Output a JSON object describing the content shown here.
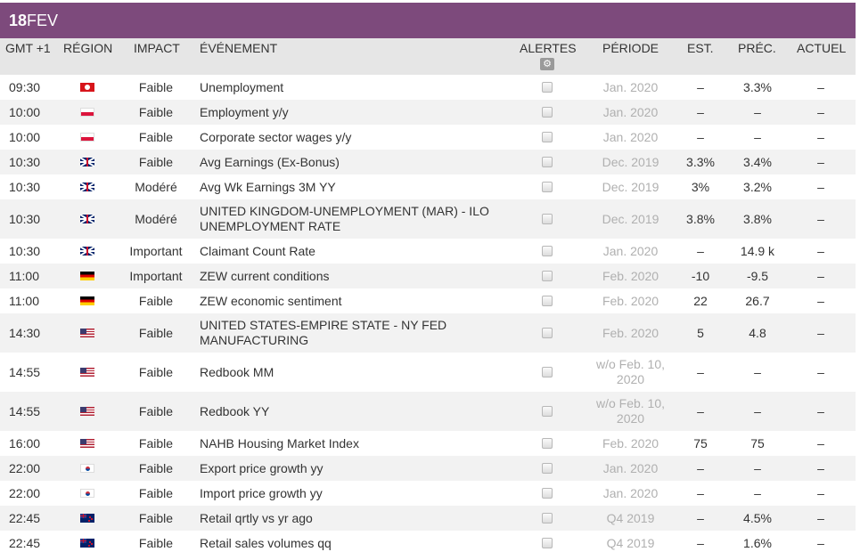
{
  "date": {
    "day": "18",
    "month": "FEV"
  },
  "headers": {
    "time": "GMT +1",
    "region": "RÉGION",
    "impact": "IMPACT",
    "event": "ÉVÉNEMENT",
    "alerts": "ALERTES",
    "period": "PÉRIODE",
    "est": "EST.",
    "prev": "PRÉC.",
    "actual": "ACTUEL"
  },
  "icons": {
    "alerts_settings": "gear-icon"
  },
  "colors": {
    "date_bar": "#7d4a7c",
    "header_bg": "#e6e6e6",
    "alt_row": "#f2f2f2",
    "period_text": "#b0b0b0"
  },
  "rows": [
    {
      "time": "09:30",
      "flag": "hk",
      "impact": "Faible",
      "event": "Unemployment",
      "period": "Jan. 2020",
      "est": "–",
      "prev": "3.3%",
      "actual": "–",
      "h": 28
    },
    {
      "time": "10:00",
      "flag": "pl",
      "impact": "Faible",
      "event": "Employment y/y",
      "period": "Jan. 2020",
      "est": "–",
      "prev": "–",
      "actual": "–",
      "h": 28
    },
    {
      "time": "10:00",
      "flag": "pl",
      "impact": "Faible",
      "event": "Corporate sector wages y/y",
      "period": "Jan. 2020",
      "est": "–",
      "prev": "–",
      "actual": "–",
      "h": 28
    },
    {
      "time": "10:30",
      "flag": "gb",
      "impact": "Faible",
      "event": "Avg Earnings (Ex-Bonus)",
      "period": "Dec. 2019",
      "est": "3.3%",
      "prev": "3.4%",
      "actual": "–",
      "h": 28
    },
    {
      "time": "10:30",
      "flag": "gb",
      "impact": "Modéré",
      "event": "Avg Wk Earnings 3M YY",
      "period": "Dec. 2019",
      "est": "3%",
      "prev": "3.2%",
      "actual": "–",
      "h": 28
    },
    {
      "time": "10:30",
      "flag": "gb",
      "impact": "Modéré",
      "event": "UNITED KINGDOM-UNEMPLOYMENT (MAR) - ILO UNEMPLOYMENT RATE",
      "period": "Dec. 2019",
      "est": "3.8%",
      "prev": "3.8%",
      "actual": "–",
      "h": 44
    },
    {
      "time": "10:30",
      "flag": "gb",
      "impact": "Important",
      "event": "Claimant Count Rate",
      "period": "Jan. 2020",
      "est": "–",
      "prev": "14.9 k",
      "actual": "–",
      "h": 28
    },
    {
      "time": "11:00",
      "flag": "de",
      "impact": "Important",
      "event": "ZEW current conditions",
      "period": "Feb. 2020",
      "est": "-10",
      "prev": "-9.5",
      "actual": "–",
      "h": 28
    },
    {
      "time": "11:00",
      "flag": "de",
      "impact": "Faible",
      "event": "ZEW economic sentiment",
      "period": "Feb. 2020",
      "est": "22",
      "prev": "26.7",
      "actual": "–",
      "h": 28
    },
    {
      "time": "14:30",
      "flag": "us",
      "impact": "Faible",
      "event": "UNITED STATES-EMPIRE STATE - NY FED MANUFACTURING",
      "period": "Feb. 2020",
      "est": "5",
      "prev": "4.8",
      "actual": "–",
      "h": 44
    },
    {
      "time": "14:55",
      "flag": "us",
      "impact": "Faible",
      "event": "Redbook MM",
      "period": "w/o Feb. 10, 2020",
      "est": "–",
      "prev": "–",
      "actual": "–",
      "h": 44
    },
    {
      "time": "14:55",
      "flag": "us",
      "impact": "Faible",
      "event": "Redbook YY",
      "period": "w/o Feb. 10, 2020",
      "est": "–",
      "prev": "–",
      "actual": "–",
      "h": 44
    },
    {
      "time": "16:00",
      "flag": "us",
      "impact": "Faible",
      "event": "NAHB Housing Market Index",
      "period": "Feb. 2020",
      "est": "75",
      "prev": "75",
      "actual": "–",
      "h": 28
    },
    {
      "time": "22:00",
      "flag": "kr",
      "impact": "Faible",
      "event": "Export price growth yy",
      "period": "Jan. 2020",
      "est": "–",
      "prev": "–",
      "actual": "–",
      "h": 28
    },
    {
      "time": "22:00",
      "flag": "kr",
      "impact": "Faible",
      "event": "Import price growth yy",
      "period": "Jan. 2020",
      "est": "–",
      "prev": "–",
      "actual": "–",
      "h": 28
    },
    {
      "time": "22:45",
      "flag": "nz",
      "impact": "Faible",
      "event": "Retail qrtly vs yr ago",
      "period": "Q4 2019",
      "est": "–",
      "prev": "4.5%",
      "actual": "–",
      "h": 28
    },
    {
      "time": "22:45",
      "flag": "nz",
      "impact": "Faible",
      "event": "Retail sales volumes qq",
      "period": "Q4 2019",
      "est": "–",
      "prev": "1.6%",
      "actual": "–",
      "h": 28
    }
  ]
}
